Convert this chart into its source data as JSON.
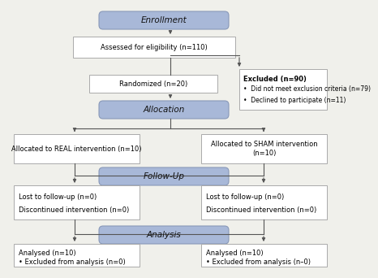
{
  "bg_color": "#f0f0eb",
  "header_fill": "#a8b8d8",
  "header_edge": "#8898b8",
  "box_fill": "#ffffff",
  "box_edge": "#aaaaaa",
  "header_fontsize": 7.5,
  "body_fontsize": 6.0,
  "arrow_color": "#555555",
  "enrollment_label": "Enrollment",
  "enrollment_box_text": "Assessed for eligibility (n=110)",
  "excluded_title": "Excluded (n=90)",
  "excluded_lines": [
    "•  Did not meet exclusion criteria (n=79)",
    "•  Declined to participate (n=11)"
  ],
  "randomized_text": "Randomized (n=20)",
  "allocation_label": "Allocation",
  "left_alloc_text": "Allocated to REAL intervention (n=10)",
  "right_alloc_text": "Allocated to SHAM intervention\n(n=10)",
  "followup_label": "Follow-Up",
  "left_follow_line1": "Lost to follow-up (n=0)",
  "left_follow_line2": "Discontinued intervention (n=0)",
  "right_follow_line1": "Lost to follow-up (n=0)",
  "right_follow_line2": "Discontinued intervention (n=0)",
  "analysis_label": "Analysis",
  "left_analysis_line1": "Analysed (n=10)",
  "left_analysis_line2": "• Excluded from analysis (n=0)",
  "right_analysis_line1": "Analysed (n=10)",
  "right_analysis_line2": "• Excluded from analysis (n–0)"
}
